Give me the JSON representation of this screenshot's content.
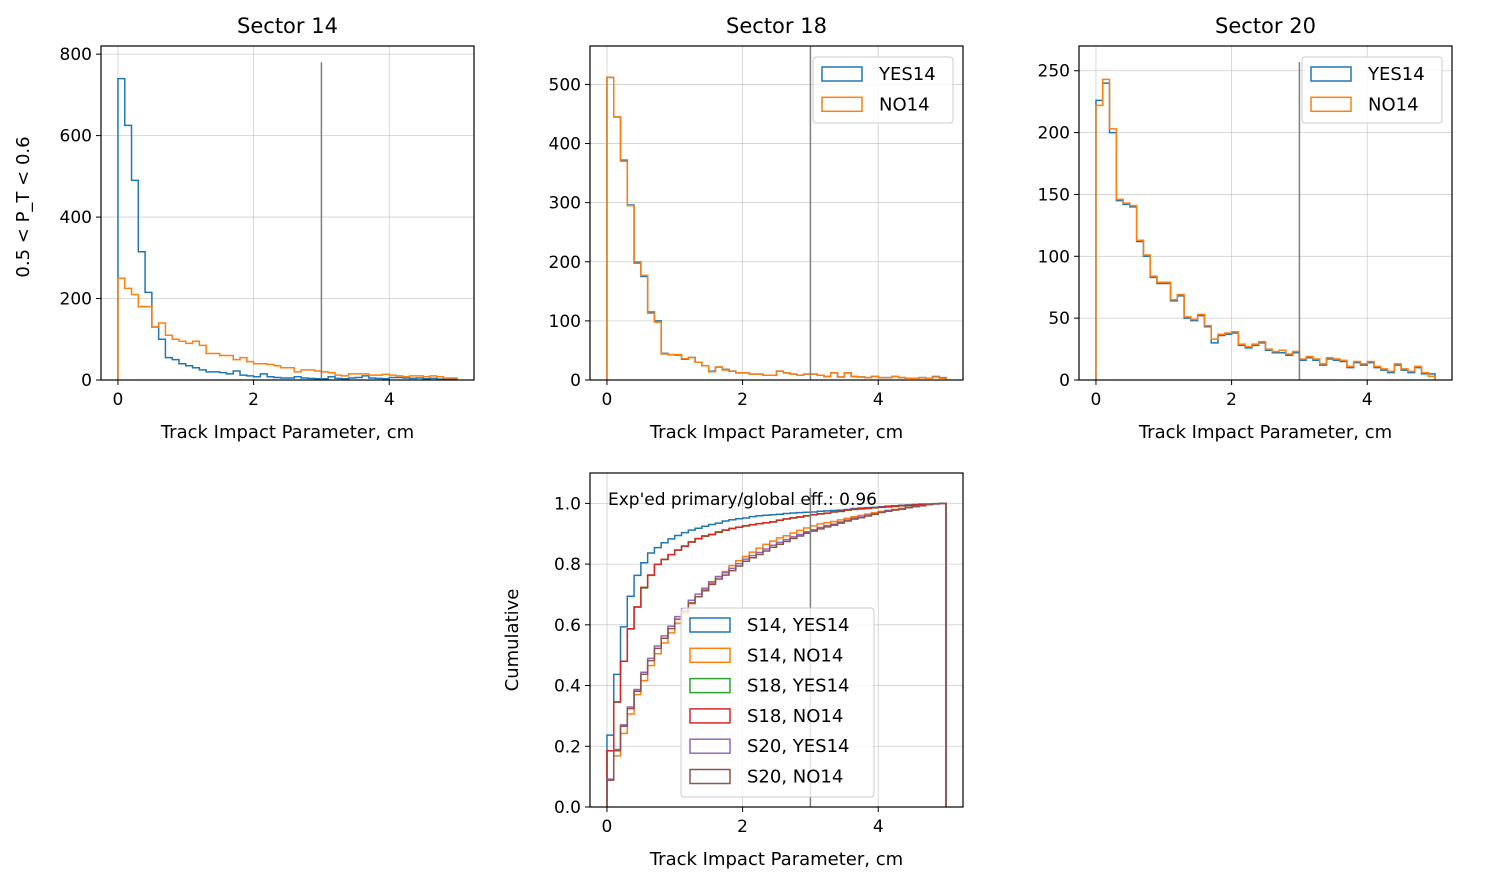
{
  "colors": {
    "c0": "#1f77b4",
    "c1": "#ff7f0e",
    "c2": "#2ca02c",
    "c3": "#d62728",
    "c4": "#9467bd",
    "c5": "#8c564b",
    "vline": "#7f7f7f"
  },
  "chart_data": [
    {
      "type": "step",
      "title": "Sector 14",
      "xlabel": "Track Impact Parameter, cm",
      "ylabel": "0.5 < P_T < 0.6",
      "xlim": [
        -0.25,
        5.25
      ],
      "ylim": [
        0,
        820
      ],
      "xticks": [
        0,
        2,
        4
      ],
      "yticks": [
        0,
        200,
        400,
        600,
        800
      ],
      "vline_x": 3,
      "vline_top": 780,
      "legend": false,
      "bin_width": 0.1,
      "series": [
        {
          "name": "YES14",
          "color_key": "c0",
          "values": [
            740,
            625,
            490,
            315,
            215,
            130,
            100,
            55,
            50,
            40,
            35,
            30,
            25,
            20,
            20,
            18,
            15,
            22,
            12,
            10,
            8,
            15,
            8,
            6,
            5,
            5,
            8,
            5,
            4,
            3,
            3,
            8,
            4,
            3,
            5,
            6,
            10,
            5,
            4,
            3,
            6,
            6,
            5,
            4,
            5,
            3,
            4,
            2,
            3,
            3
          ]
        },
        {
          "name": "NO14",
          "color_key": "c1",
          "values": [
            250,
            225,
            210,
            180,
            180,
            130,
            140,
            110,
            100,
            95,
            90,
            95,
            85,
            65,
            65,
            60,
            60,
            50,
            55,
            45,
            40,
            40,
            38,
            35,
            30,
            30,
            20,
            25,
            25,
            22,
            20,
            18,
            12,
            10,
            15,
            15,
            15,
            12,
            12,
            14,
            12,
            10,
            8,
            10,
            10,
            8,
            10,
            8,
            5,
            5
          ]
        }
      ]
    },
    {
      "type": "step",
      "title": "Sector 18",
      "xlabel": "Track Impact Parameter, cm",
      "ylabel": "",
      "xlim": [
        -0.25,
        5.25
      ],
      "ylim": [
        0,
        565
      ],
      "xticks": [
        0,
        2,
        4
      ],
      "yticks": [
        0,
        100,
        200,
        300,
        400,
        500
      ],
      "vline_x": 3,
      "vline_top": 565,
      "legend": true,
      "bin_width": 0.1,
      "series": [
        {
          "name": "YES14",
          "color_key": "c0",
          "values": [
            512,
            445,
            372,
            296,
            198,
            175,
            115,
            100,
            45,
            43,
            42,
            35,
            38,
            30,
            24,
            15,
            22,
            18,
            15,
            12,
            12,
            10,
            10,
            8,
            8,
            15,
            12,
            10,
            8,
            10,
            10,
            8,
            6,
            12,
            5,
            12,
            6,
            5,
            4,
            6,
            4,
            4,
            6,
            4,
            3,
            3,
            4,
            3,
            6,
            4
          ]
        },
        {
          "name": "NO14",
          "color_key": "c1",
          "values": [
            512,
            445,
            370,
            295,
            200,
            177,
            113,
            98,
            44,
            43,
            43,
            36,
            38,
            30,
            24,
            14,
            22,
            17,
            15,
            12,
            12,
            10,
            10,
            8,
            8,
            15,
            12,
            10,
            8,
            10,
            10,
            8,
            6,
            12,
            5,
            12,
            6,
            5,
            4,
            6,
            4,
            4,
            6,
            4,
            3,
            3,
            4,
            3,
            5,
            3
          ]
        }
      ]
    },
    {
      "type": "step",
      "title": "Sector 20",
      "xlabel": "Track Impact Parameter, cm",
      "ylabel": "",
      "xlim": [
        -0.25,
        5.25
      ],
      "ylim": [
        0,
        270
      ],
      "xticks": [
        0,
        2,
        4
      ],
      "yticks": [
        0,
        50,
        100,
        150,
        200,
        250
      ],
      "vline_x": 3,
      "vline_top": 257,
      "legend": true,
      "bin_width": 0.1,
      "series": [
        {
          "name": "YES14",
          "color_key": "c0",
          "values": [
            226,
            240,
            200,
            145,
            142,
            140,
            112,
            100,
            83,
            78,
            78,
            64,
            68,
            50,
            48,
            52,
            43,
            30,
            36,
            37,
            38,
            28,
            26,
            28,
            30,
            24,
            22,
            22,
            20,
            22,
            16,
            18,
            16,
            12,
            17,
            16,
            15,
            10,
            14,
            12,
            14,
            10,
            8,
            6,
            12,
            8,
            6,
            10,
            5,
            5
          ]
        },
        {
          "name": "NO14",
          "color_key": "c1",
          "values": [
            222,
            243,
            203,
            146,
            143,
            141,
            113,
            101,
            84,
            79,
            79,
            65,
            69,
            51,
            49,
            53,
            44,
            33,
            37,
            38,
            39,
            29,
            27,
            29,
            31,
            25,
            23,
            24,
            21,
            23,
            17,
            19,
            17,
            13,
            18,
            17,
            16,
            11,
            15,
            13,
            15,
            11,
            9,
            7,
            13,
            9,
            7,
            11,
            6,
            3
          ]
        }
      ]
    },
    {
      "type": "step",
      "title": "",
      "xlabel": "Track Impact Parameter, cm",
      "ylabel": "Cumulative",
      "xlim": [
        -0.25,
        5.25
      ],
      "ylim": [
        0,
        1.1
      ],
      "xticks": [
        0,
        2,
        4
      ],
      "yticks": [
        0.0,
        0.2,
        0.4,
        0.6,
        0.8,
        1.0
      ],
      "ytick_labels": [
        "0.0",
        "0.2",
        "0.4",
        "0.6",
        "0.8",
        "1.0"
      ],
      "vline_x": 3,
      "vline_top": 1.05,
      "legend": true,
      "cumulative": true,
      "annotation": "Exp'ed primary/global eff.: 0.96",
      "series_ref": [
        {
          "name": "S14, YES14",
          "color_key": "c0",
          "from": 0,
          "series": 0
        },
        {
          "name": "S14, NO14",
          "color_key": "c1",
          "from": 0,
          "series": 1
        },
        {
          "name": "S18, YES14",
          "color_key": "c2",
          "from": 1,
          "series": 0
        },
        {
          "name": "S18, NO14",
          "color_key": "c3",
          "from": 1,
          "series": 1
        },
        {
          "name": "S20, YES14",
          "color_key": "c4",
          "from": 2,
          "series": 0
        },
        {
          "name": "S20, NO14",
          "color_key": "c5",
          "from": 2,
          "series": 1
        }
      ]
    }
  ]
}
